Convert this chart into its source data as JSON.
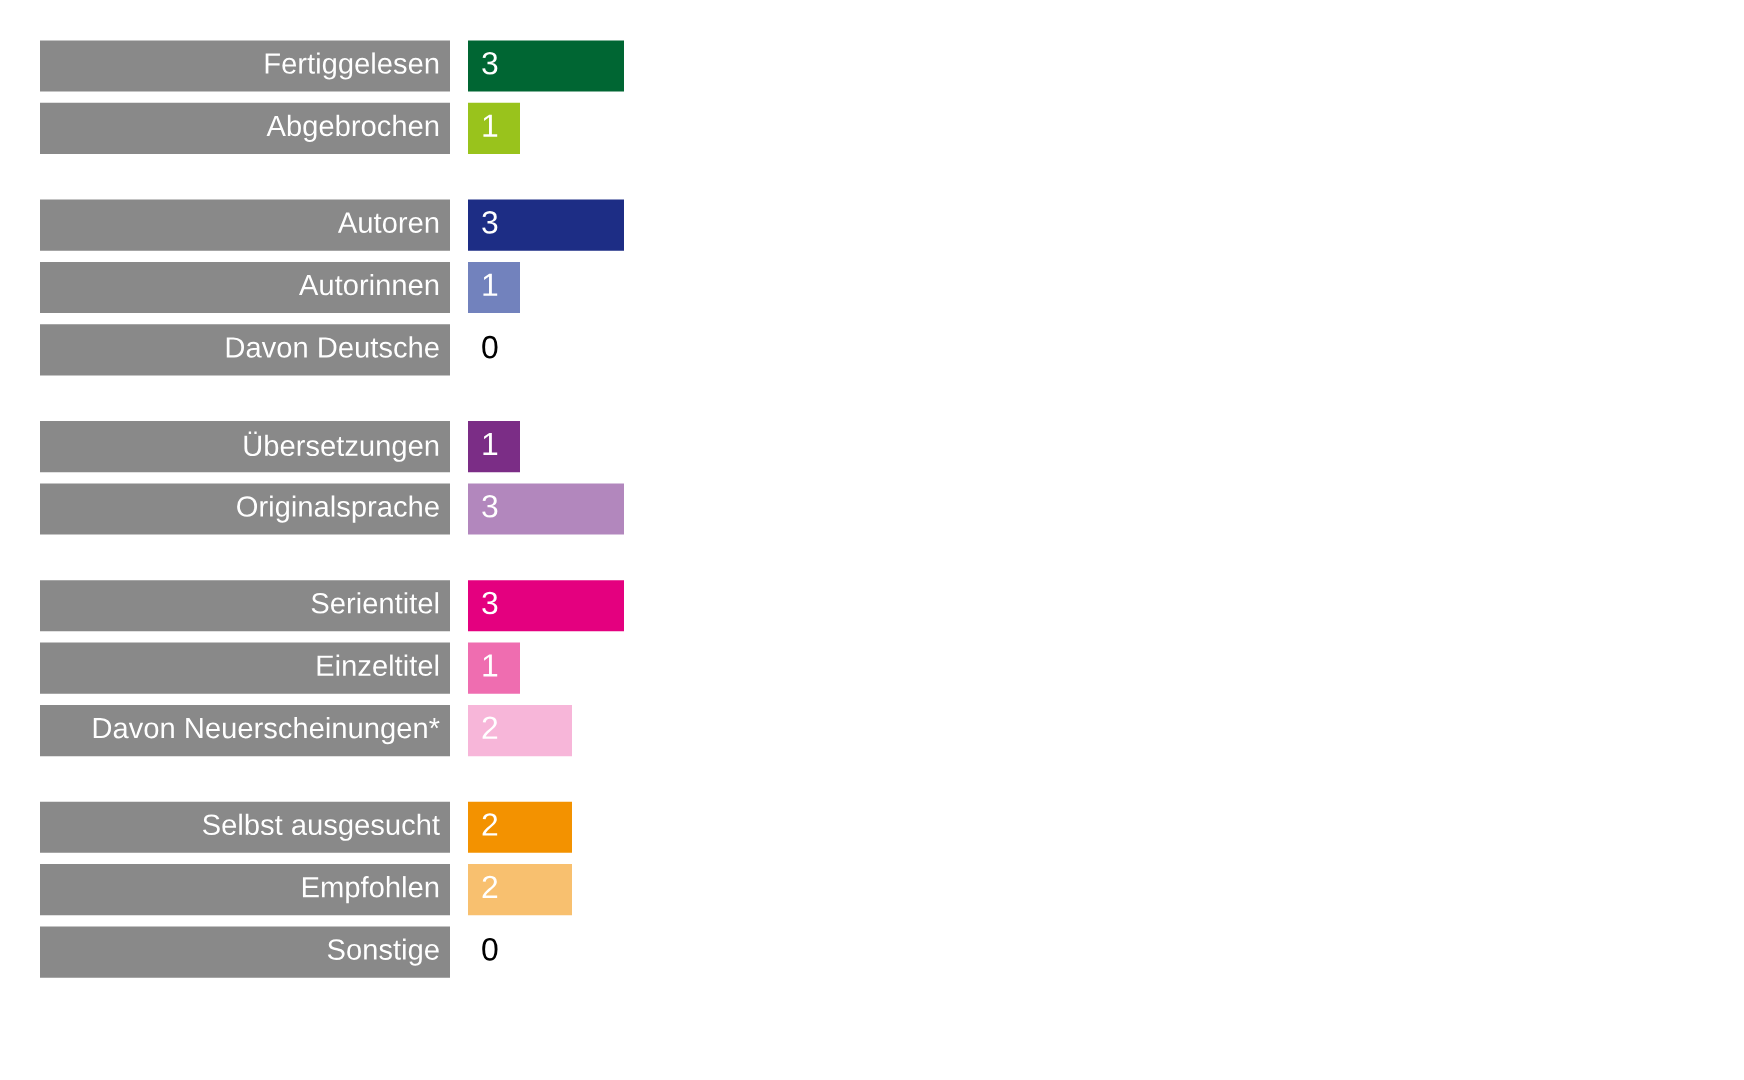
{
  "chart_data": {
    "type": "bar",
    "orientation": "horizontal",
    "data_labels": true,
    "categories": [
      "Fertiggelesen",
      "Abgebrochen",
      null,
      "Autoren",
      "Autorinnen",
      "Davon Deutsche",
      null,
      "Übersetzungen",
      "Originalsprache",
      null,
      "Serientitel",
      "Einzeltitel",
      "Davon Neuerscheinungen*",
      null,
      "Selbst ausgesucht",
      "Empfohlen",
      "Sonstige"
    ],
    "values": [
      3,
      1,
      null,
      3,
      1,
      0,
      null,
      1,
      3,
      null,
      3,
      1,
      2,
      null,
      2,
      2,
      0
    ],
    "colors": [
      "#006633",
      "#99c31c",
      null,
      "#1d2d85",
      "#7282bd",
      null,
      null,
      "#7b2d86",
      "#b287bd",
      null,
      "#e4007f",
      "#ef6db0",
      "#f7b6d9",
      null,
      "#f39200",
      "#f8c06f",
      null
    ]
  }
}
